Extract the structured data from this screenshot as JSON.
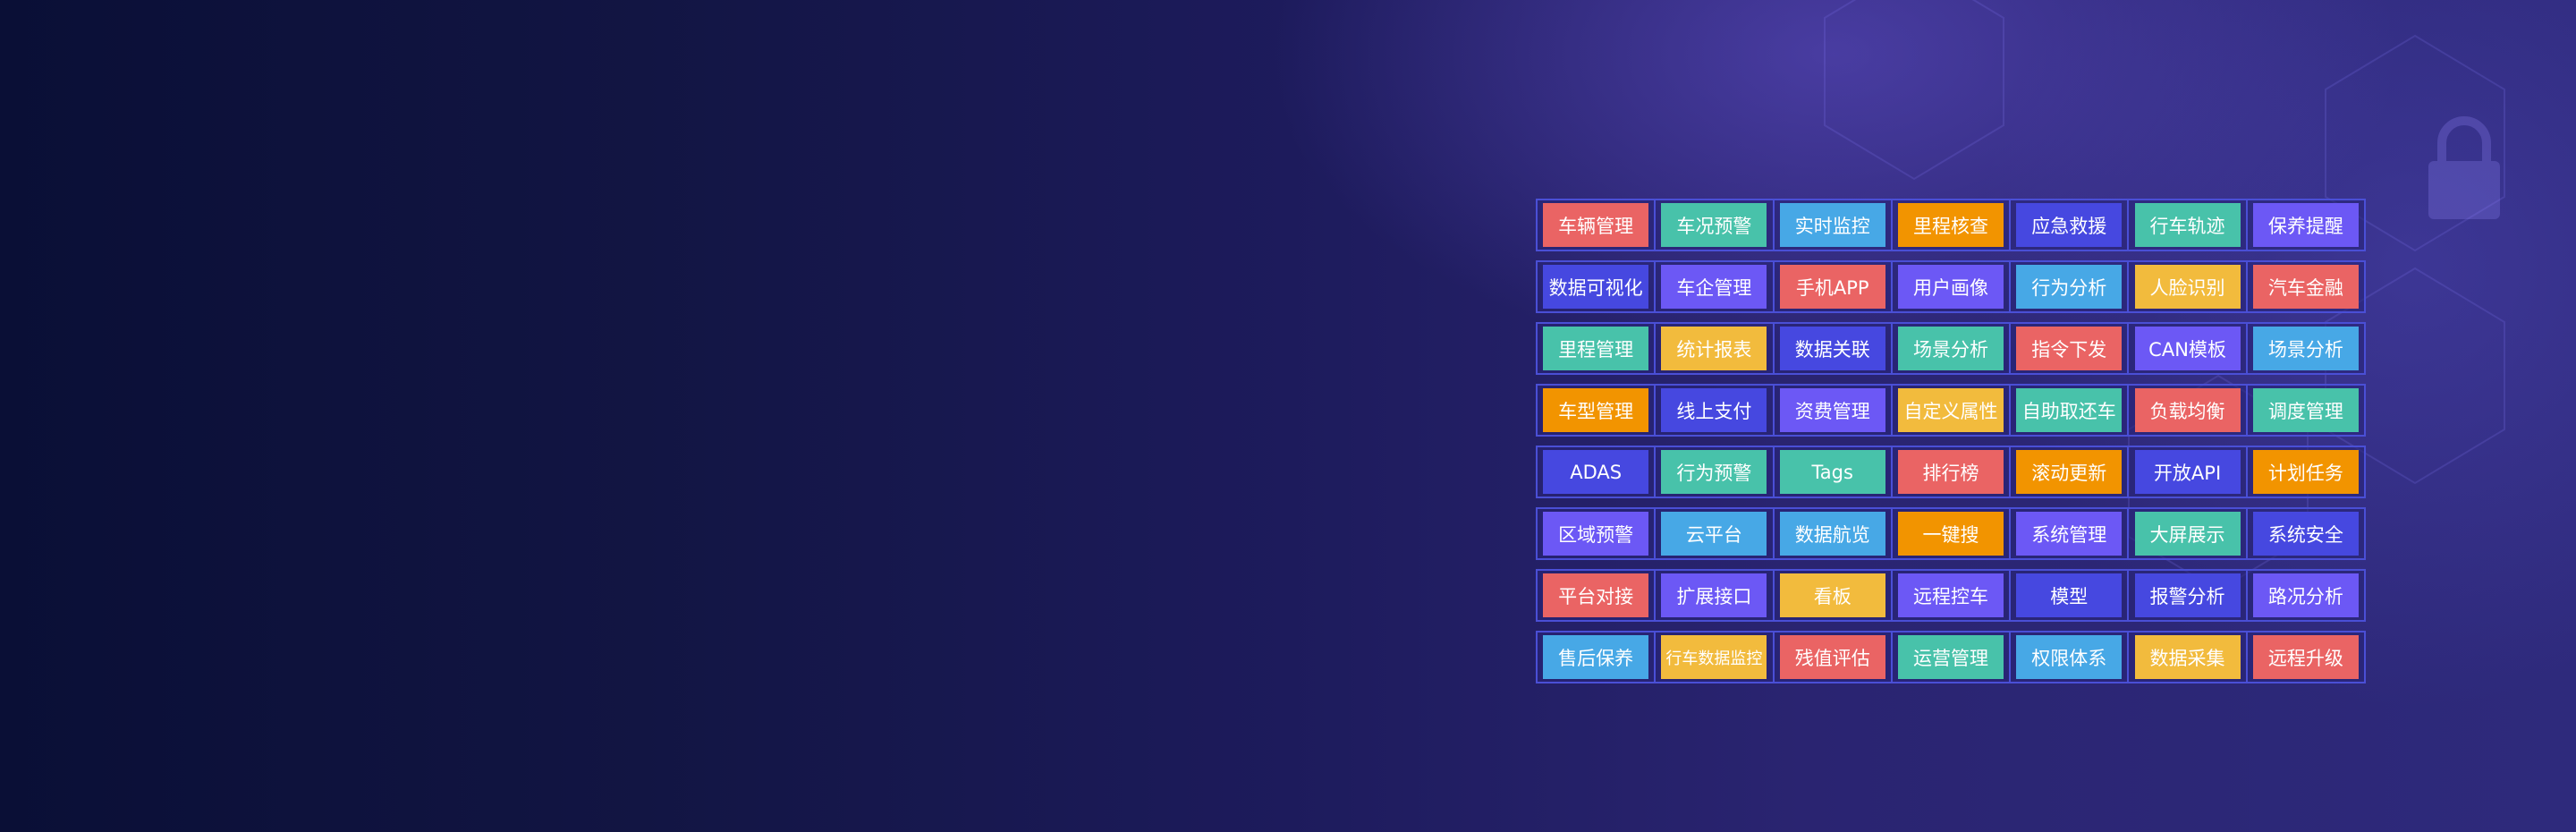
{
  "colors": {
    "red": "#ea6464",
    "teal": "#48c2aa",
    "blue": "#47a8e6",
    "orange": "#f29400",
    "indigo": "#4648e0",
    "purple": "#6c58f5",
    "yellow": "#f2bb3d"
  },
  "feature_grid": {
    "rows": [
      [
        {
          "label": "车辆管理",
          "color": "red"
        },
        {
          "label": "车况预警",
          "color": "teal"
        },
        {
          "label": "实时监控",
          "color": "blue"
        },
        {
          "label": "里程核查",
          "color": "orange"
        },
        {
          "label": "应急救援",
          "color": "indigo"
        },
        {
          "label": "行车轨迹",
          "color": "teal"
        },
        {
          "label": "保养提醒",
          "color": "purple"
        }
      ],
      [
        {
          "label": "数据可视化",
          "color": "indigo"
        },
        {
          "label": "车企管理",
          "color": "purple"
        },
        {
          "label": "手机APP",
          "color": "red"
        },
        {
          "label": "用户画像",
          "color": "purple"
        },
        {
          "label": "行为分析",
          "color": "blue"
        },
        {
          "label": "人脸识别",
          "color": "yellow"
        },
        {
          "label": "汽车金融",
          "color": "red"
        }
      ],
      [
        {
          "label": "里程管理",
          "color": "teal"
        },
        {
          "label": "统计报表",
          "color": "yellow"
        },
        {
          "label": "数据关联",
          "color": "indigo"
        },
        {
          "label": "场景分析",
          "color": "teal"
        },
        {
          "label": "指令下发",
          "color": "red"
        },
        {
          "label": "CAN模板",
          "color": "purple"
        },
        {
          "label": "场景分析",
          "color": "blue"
        }
      ],
      [
        {
          "label": "车型管理",
          "color": "orange"
        },
        {
          "label": "线上支付",
          "color": "indigo"
        },
        {
          "label": "资费管理",
          "color": "purple"
        },
        {
          "label": "自定义属性",
          "color": "yellow"
        },
        {
          "label": "自助取还车",
          "color": "teal"
        },
        {
          "label": "负载均衡",
          "color": "red"
        },
        {
          "label": "调度管理",
          "color": "teal"
        }
      ],
      [
        {
          "label": "ADAS",
          "color": "indigo"
        },
        {
          "label": "行为预警",
          "color": "teal"
        },
        {
          "label": "Tags",
          "color": "teal"
        },
        {
          "label": "排行榜",
          "color": "red"
        },
        {
          "label": "滚动更新",
          "color": "orange"
        },
        {
          "label": "开放API",
          "color": "indigo"
        },
        {
          "label": "计划任务",
          "color": "orange"
        }
      ],
      [
        {
          "label": "区域预警",
          "color": "purple"
        },
        {
          "label": "云平台",
          "color": "blue"
        },
        {
          "label": "数据航览",
          "color": "blue"
        },
        {
          "label": "一键搜",
          "color": "orange"
        },
        {
          "label": "系统管理",
          "color": "purple"
        },
        {
          "label": "大屏展示",
          "color": "teal"
        },
        {
          "label": "系统安全",
          "color": "indigo"
        }
      ],
      [
        {
          "label": "平台对接",
          "color": "red"
        },
        {
          "label": "扩展接口",
          "color": "purple"
        },
        {
          "label": "看板",
          "color": "yellow"
        },
        {
          "label": "远程控车",
          "color": "purple"
        },
        {
          "label": "模型",
          "color": "indigo"
        },
        {
          "label": "报警分析",
          "color": "indigo"
        },
        {
          "label": "路况分析",
          "color": "purple"
        }
      ],
      [
        {
          "label": "售后保养",
          "color": "blue"
        },
        {
          "label": "行车数据监控",
          "color": "yellow"
        },
        {
          "label": "残值评估",
          "color": "red"
        },
        {
          "label": "运营管理",
          "color": "teal"
        },
        {
          "label": "权限体系",
          "color": "blue"
        },
        {
          "label": "数据采集",
          "color": "yellow"
        },
        {
          "label": "远程升级",
          "color": "red"
        }
      ]
    ]
  }
}
